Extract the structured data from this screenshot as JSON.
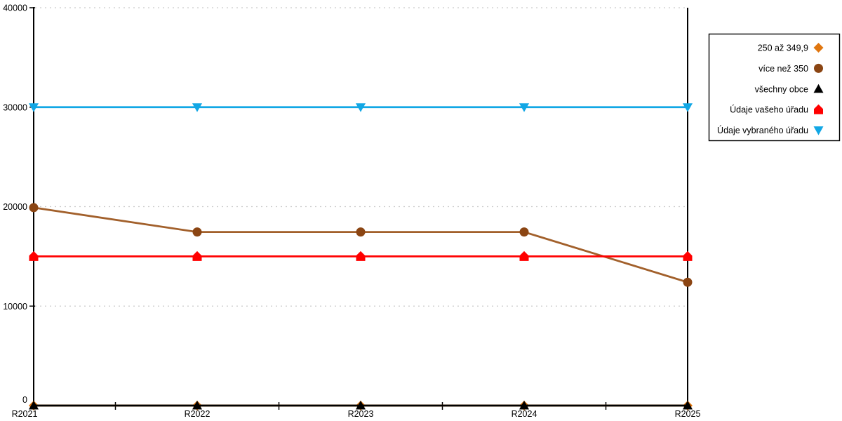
{
  "chart_data": {
    "type": "line",
    "title": "",
    "xlabel": "",
    "ylabel": "",
    "x_categories": [
      "R2021",
      "R2022",
      "R2023",
      "R2024",
      "R2025"
    ],
    "ylim": [
      0,
      40000
    ],
    "yticks": [
      0,
      10000,
      20000,
      30000,
      40000
    ],
    "grid": "horizontal-dotted",
    "legend_position": "right",
    "series": [
      {
        "name": "250 až 349,9",
        "marker": "diamond",
        "color": "#E0760F",
        "line_color": "#E0760F",
        "values": [
          0,
          0,
          0,
          0,
          0
        ]
      },
      {
        "name": "více než 350",
        "marker": "circle",
        "color": "#8B4513",
        "line_color": "#A2602B",
        "values": [
          19900,
          17450,
          17450,
          17450,
          12400
        ]
      },
      {
        "name": "všechny obce",
        "marker": "triangle-up",
        "color": "#000000",
        "line_color": "#000000",
        "values": [
          0,
          0,
          0,
          0,
          0
        ]
      },
      {
        "name": "Údaje vašeho úřadu",
        "marker": "pentagon",
        "color": "#FF0000",
        "line_color": "#FF0000",
        "values": [
          15000,
          15000,
          15000,
          15000,
          15000
        ]
      },
      {
        "name": "Údaje vybraného úřadu",
        "marker": "triangle-down",
        "color": "#12A7E5",
        "line_color": "#12A7E5",
        "values": [
          30000,
          30000,
          30000,
          30000,
          30000
        ]
      }
    ],
    "colors": {
      "axis": "#000000",
      "gridline": "#C9C9C9",
      "background": "#FFFFFF",
      "label_text": "#000000",
      "legend_border": "#000000",
      "legend_background": "#FFFFFF"
    }
  }
}
